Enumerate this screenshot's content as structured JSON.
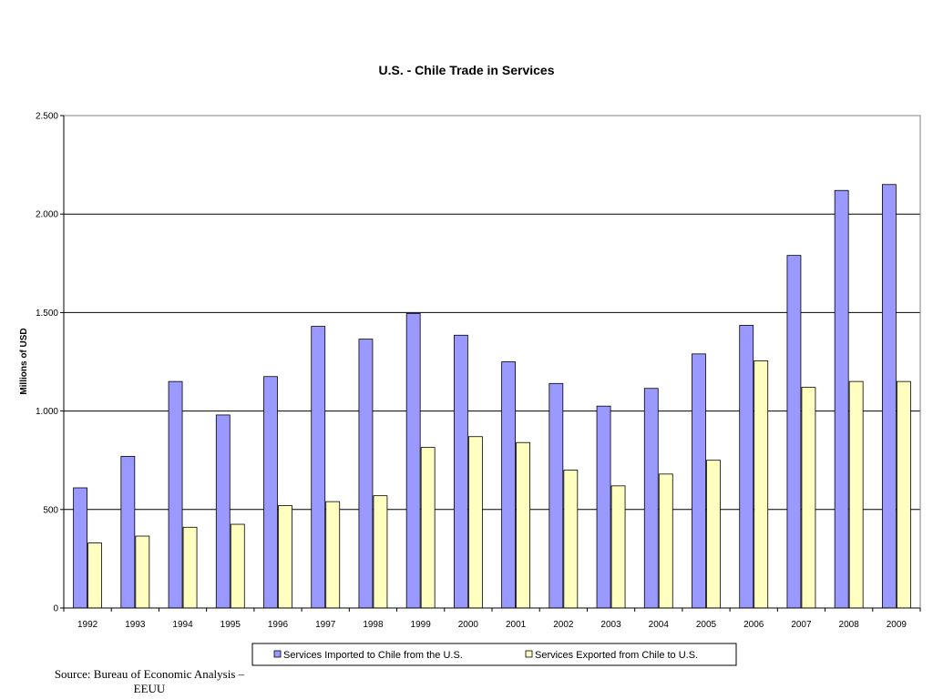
{
  "chart_data": {
    "type": "bar",
    "title": "U.S. - Chile Trade in Services",
    "xlabel": "",
    "ylabel": "Millions of USD",
    "ylim": [
      0,
      2500
    ],
    "yticks": [
      0,
      500,
      1000,
      1500,
      2000,
      2500
    ],
    "ytick_labels": [
      "0",
      "500",
      "1.000",
      "1.500",
      "2.000",
      "2.500"
    ],
    "grid": true,
    "legend_position": "bottom",
    "categories": [
      "1992",
      "1993",
      "1994",
      "1995",
      "1996",
      "1997",
      "1998",
      "1999",
      "2000",
      "2001",
      "2002",
      "2003",
      "2004",
      "2005",
      "2006",
      "2007",
      "2008",
      "2009"
    ],
    "series": [
      {
        "name": "Services Imported to Chile from the U.S.",
        "color": "#9999ff",
        "values": [
          610,
          770,
          1150,
          980,
          1175,
          1430,
          1365,
          1495,
          1385,
          1250,
          1140,
          1025,
          1115,
          1290,
          1435,
          1790,
          2120,
          2150
        ]
      },
      {
        "name": "Services Exported from Chile to U.S.",
        "color": "#ffffc0",
        "values": [
          330,
          365,
          410,
          425,
          520,
          540,
          570,
          815,
          870,
          840,
          700,
          620,
          680,
          750,
          1255,
          1120,
          1150,
          1150
        ]
      }
    ]
  },
  "source": {
    "line1": "Source: Bureau of Economic Analysis –",
    "line2": "EEUU"
  }
}
